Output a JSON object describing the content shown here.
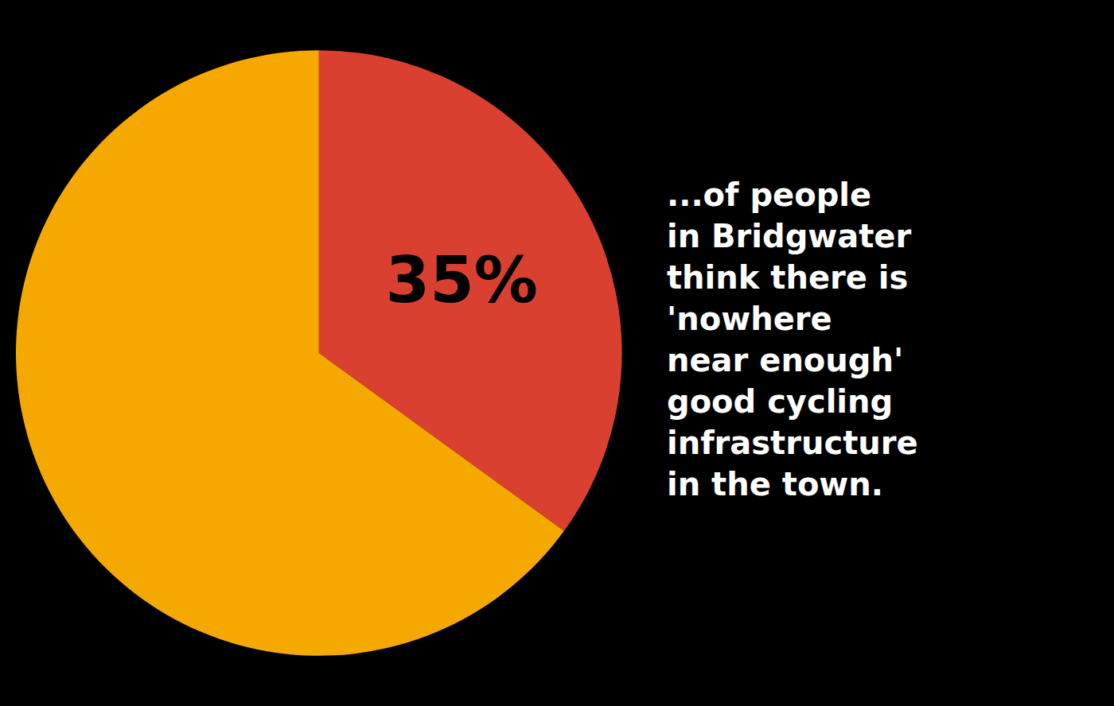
{
  "chart_data": {
    "type": "pie",
    "values": [
      35,
      65
    ],
    "colors": [
      "#D94030",
      "#F5A800"
    ],
    "data_labels": true,
    "value_labels": [
      "35%",
      null
    ],
    "annotation": [
      "...of people",
      "in Bridgwater",
      "think there is",
      "'nowhere",
      "near enough'",
      "good cycling",
      "infrastructure",
      "in the town."
    ]
  }
}
